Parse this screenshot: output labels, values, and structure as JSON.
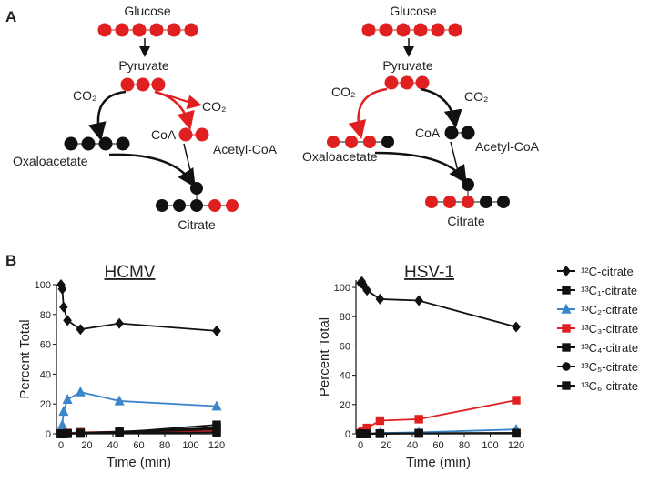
{
  "panel_a": {
    "label": "A",
    "left": {
      "glucose": "Glucose",
      "pyruvate": "Pyruvate",
      "co2_in": "CO₂",
      "co2_out": "CO₂",
      "coa": "CoA",
      "acetyl_coa": "Acetyl-CoA",
      "oxaloacetate": "Oxaloacetate",
      "citrate": "Citrate"
    },
    "right": {
      "glucose": "Glucose",
      "pyruvate": "Pyruvate",
      "co2_in": "CO₂",
      "co2_out": "CO₂",
      "coa": "CoA",
      "acetyl_coa": "Acetyl-CoA",
      "oxaloacetate": "Oxaloacetate",
      "citrate": "Citrate"
    }
  },
  "panel_b": {
    "label": "B"
  },
  "chart_data": [
    {
      "type": "line",
      "title": "HCMV",
      "x_label": "Time (min)",
      "y_label": "Percent Total",
      "x": [
        0,
        1,
        2,
        5,
        15,
        45,
        120
      ],
      "xlim": [
        0,
        120
      ],
      "xticks": [
        0,
        20,
        40,
        60,
        80,
        100,
        120
      ],
      "ylim": [
        0,
        100
      ],
      "yticks": [
        0,
        20,
        40,
        60,
        80,
        100
      ],
      "legend": "right",
      "series": [
        {
          "name": "¹²C-citrate",
          "color": "#111111",
          "marker": "diamond",
          "values": [
            100,
            97,
            85,
            76,
            70,
            74,
            69
          ]
        },
        {
          "name": "¹³C₁-citrate",
          "color": "#111111",
          "marker": "square",
          "values": [
            0,
            0,
            0,
            0.5,
            1,
            1.5,
            4
          ]
        },
        {
          "name": "¹³C₂-citrate",
          "color": "#3a86c8",
          "marker": "triangle",
          "values": [
            0,
            6,
            15,
            23,
            28,
            22,
            18.5
          ]
        },
        {
          "name": "¹³C₃-citrate",
          "color": "#e02020",
          "marker": "square",
          "values": [
            0,
            0.2,
            0.3,
            0.5,
            0.8,
            1,
            2
          ]
        },
        {
          "name": "¹³C₄-citrate",
          "color": "#111111",
          "marker": "square",
          "values": [
            0,
            0,
            0,
            0.3,
            0.5,
            1,
            6
          ]
        },
        {
          "name": "¹³C₅-citrate",
          "color": "#111111",
          "marker": "circle",
          "values": [
            0,
            0,
            0,
            0.2,
            0.5,
            1,
            3
          ]
        },
        {
          "name": "¹³C₆-citrate",
          "color": "#111111",
          "marker": "square",
          "values": [
            0,
            0,
            0,
            0,
            0.2,
            0.5,
            1
          ]
        }
      ]
    },
    {
      "type": "line",
      "title": "HSV-1",
      "x_label": "Time (min)",
      "y_label": "Percent Total",
      "x": [
        0,
        1,
        2,
        5,
        15,
        45,
        120
      ],
      "xlim": [
        0,
        120
      ],
      "xticks": [
        0,
        20,
        40,
        60,
        80,
        100,
        120
      ],
      "ylim": [
        0,
        105
      ],
      "yticks": [
        0,
        20,
        40,
        60,
        80,
        100
      ],
      "series": [
        {
          "color": "#111111",
          "marker": "diamond",
          "values": [
            103,
            104,
            102,
            98,
            92,
            91,
            73
          ]
        },
        {
          "color": "#111111",
          "marker": "square",
          "values": [
            0,
            0,
            0,
            0,
            0.2,
            0.5,
            0.5
          ]
        },
        {
          "color": "#3a86c8",
          "marker": "triangle",
          "values": [
            0,
            0,
            0,
            0.3,
            0.5,
            1,
            3
          ]
        },
        {
          "color": "#e02020",
          "marker": "square",
          "values": [
            0,
            1,
            2,
            4,
            9,
            10,
            23
          ]
        },
        {
          "color": "#111111",
          "marker": "square",
          "values": [
            0,
            0,
            0,
            0,
            0.2,
            0.3,
            0.5
          ]
        },
        {
          "color": "#111111",
          "marker": "circle",
          "values": [
            0,
            0,
            0,
            0,
            0.2,
            0.3,
            0.5
          ]
        },
        {
          "color": "#111111",
          "marker": "square",
          "values": [
            0,
            0,
            0,
            0,
            0,
            0.2,
            0.3
          ]
        }
      ]
    }
  ]
}
